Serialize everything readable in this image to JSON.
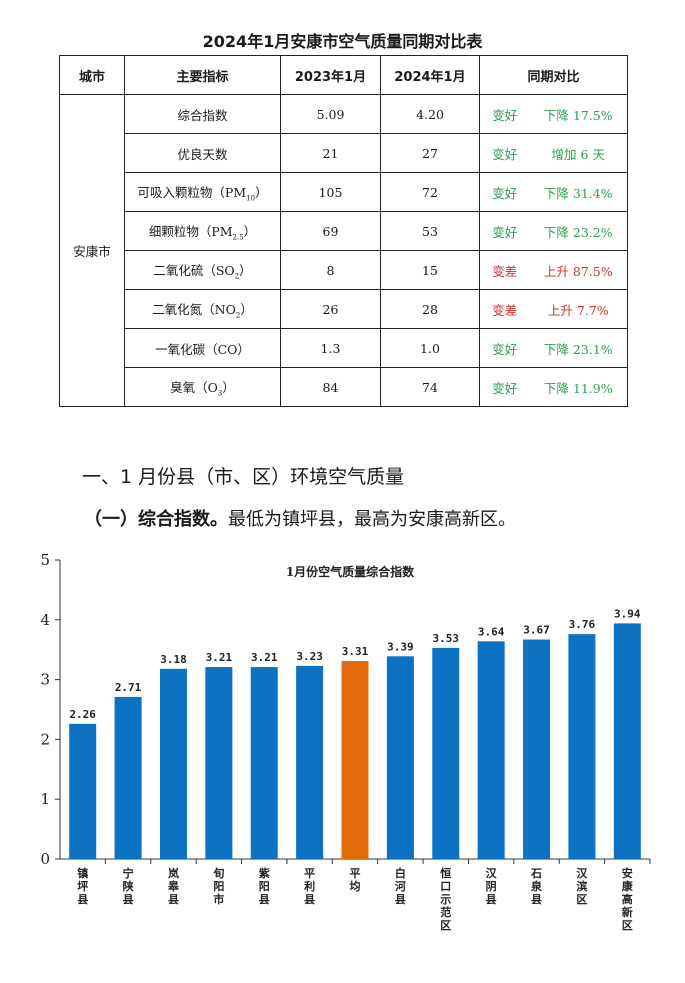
{
  "doc": {
    "title": "2024年1月安康市空气质量同期对比表",
    "table": {
      "headers": [
        "城市",
        "主要指标",
        "2023年1月",
        "2024年1月",
        "同期对比"
      ],
      "city": "安康市",
      "rows": [
        {
          "metric": "综合指数",
          "y2023": "5.09",
          "y2024": "4.20",
          "trend": "变好",
          "change": "下降 17.5%",
          "status": "good"
        },
        {
          "metric": "优良天数",
          "y2023": "21",
          "y2024": "27",
          "trend": "变好",
          "change": "增加 6 天",
          "status": "good"
        },
        {
          "metric": "可吸入颗粒物（PM",
          "sub": "10",
          "tail": "）",
          "y2023": "105",
          "y2024": "72",
          "trend": "变好",
          "change": "下降 31.4%",
          "status": "good"
        },
        {
          "metric": "细颗粒物（PM",
          "sub": "2.5",
          "tail": "）",
          "y2023": "69",
          "y2024": "53",
          "trend": "变好",
          "change": "下降 23.2%",
          "status": "good"
        },
        {
          "metric": "二氧化硫（SO",
          "sub": "2",
          "tail": "）",
          "y2023": "8",
          "y2024": "15",
          "trend": "变差",
          "change": "上升 87.5%",
          "status": "bad"
        },
        {
          "metric": "二氧化氮（NO",
          "sub": "2",
          "tail": "）",
          "y2023": "26",
          "y2024": "28",
          "trend": "变差",
          "change": "上升 7.7%",
          "status": "bad"
        },
        {
          "metric": "一氧化碳（CO）",
          "y2023": "1.3",
          "y2024": "1.0",
          "trend": "变好",
          "change": "下降 23.1%",
          "status": "good"
        },
        {
          "metric": "臭氧（O",
          "sub": "3",
          "tail": "）",
          "y2023": "84",
          "y2024": "74",
          "trend": "变好",
          "change": "下降 11.9%",
          "status": "good"
        }
      ]
    },
    "section_heading": "一、1 月份县（市、区）环境空气质量",
    "subsection_lead": "（一）综合指数。",
    "subsection_text": "最低为镇坪县，最高为安康高新区。"
  },
  "chart_data": {
    "type": "bar",
    "title": "1月份空气质量综合指数",
    "categories": [
      "镇坪县",
      "宁陕县",
      "岚皋县",
      "旬阳市",
      "紫阳县",
      "平利县",
      "平均",
      "白河县",
      "恒口示范区",
      "汉阴县",
      "石泉县",
      "汉滨区",
      "安康高新区"
    ],
    "values": [
      2.26,
      2.71,
      3.18,
      3.21,
      3.21,
      3.23,
      3.31,
      3.39,
      3.53,
      3.64,
      3.67,
      3.76,
      3.94
    ],
    "value_labels": [
      "2.26",
      "2.71",
      "3.18",
      "3.21",
      "3.21",
      "3.23",
      "3.31",
      "3.39",
      "3.53",
      "3.64",
      "3.67",
      "3.76",
      "3.94"
    ],
    "highlight_index": 6,
    "ylim": [
      0,
      5
    ],
    "yticks": [
      "0",
      "1",
      "2",
      "3",
      "4",
      "5"
    ],
    "colors": {
      "bar": "#0c72c4",
      "highlight": "#e36c0a",
      "axis": "#333333"
    },
    "grid": false,
    "legend": "none"
  }
}
